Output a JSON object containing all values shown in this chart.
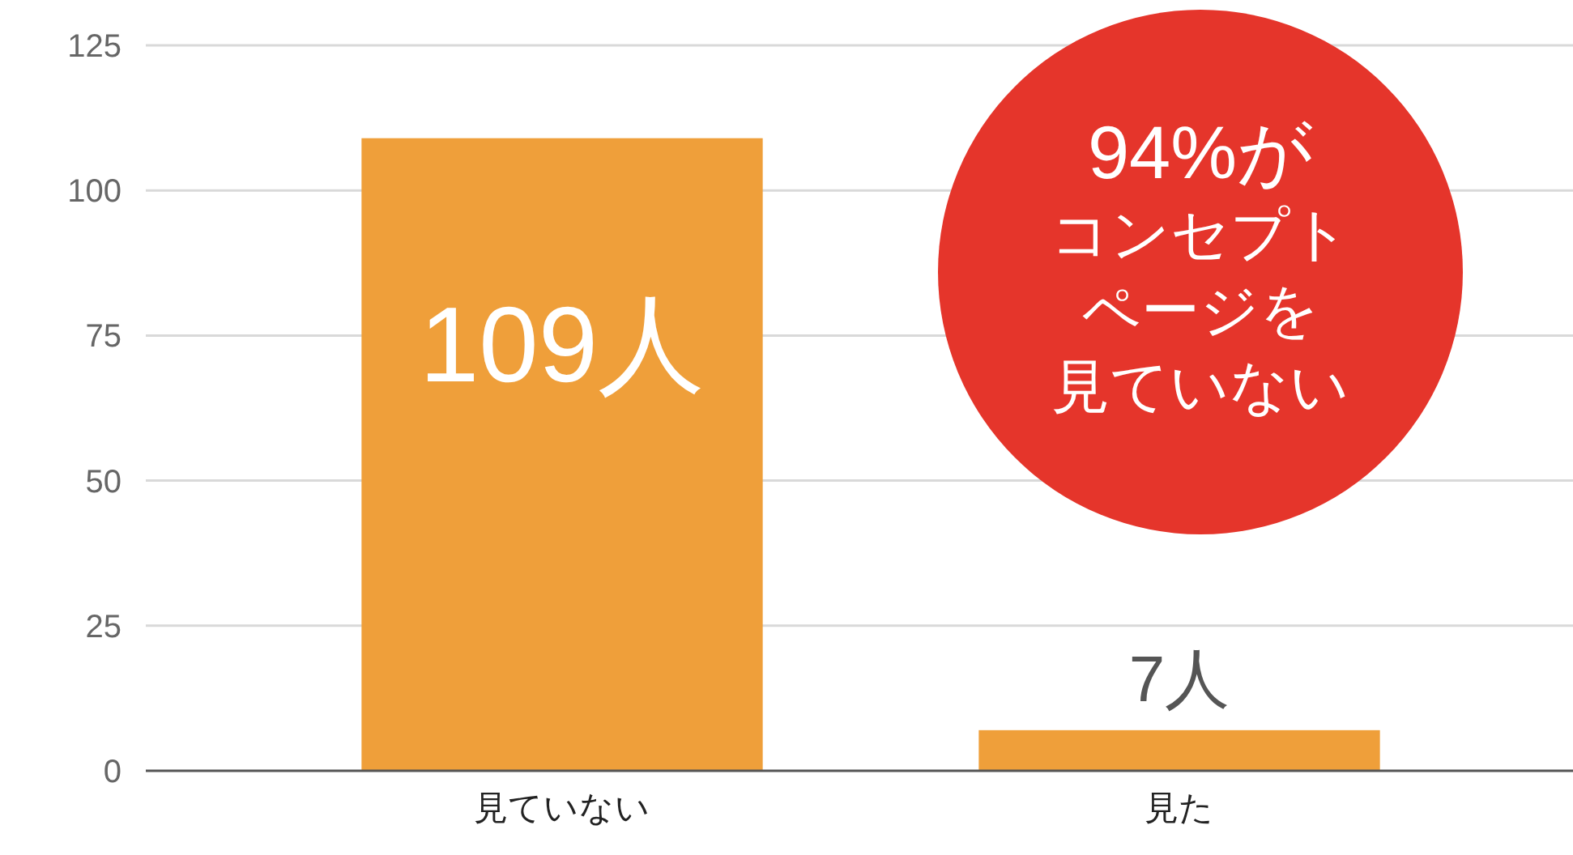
{
  "chart_data": {
    "type": "bar",
    "categories": [
      "見ていない",
      "見た"
    ],
    "values": [
      109,
      7
    ],
    "value_labels": [
      "109人",
      "7人"
    ],
    "color": "#ef9f3a",
    "ylim": [
      0,
      125
    ],
    "yticks": [
      0,
      25,
      50,
      75,
      100,
      125
    ],
    "grid": "y",
    "annotations": [
      "94%が",
      "コンセプト",
      "ページを",
      "見ていない"
    ]
  }
}
